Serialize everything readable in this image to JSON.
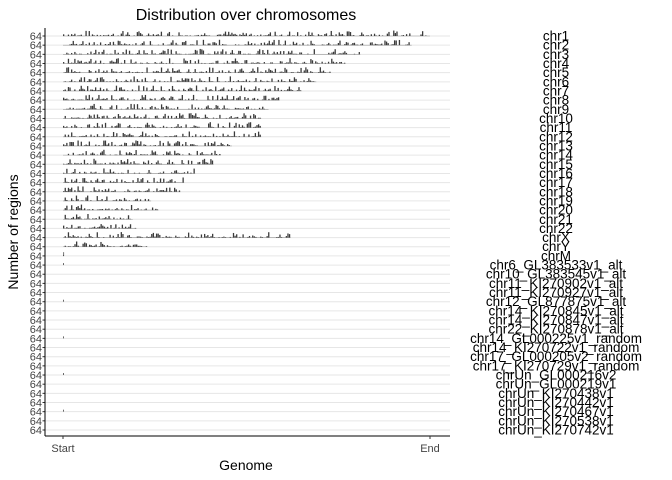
{
  "chart_data": {
    "type": "bar",
    "title": "Distribution over chromosomes",
    "xlabel": "Genome",
    "ylabel": "Number of regions",
    "x_ticks": [
      "Start",
      "End"
    ],
    "y_tick_label": "64",
    "grid": "horizontal lines per chromosome",
    "legend": "none",
    "chromosomes": [
      {
        "name": "chr1",
        "length": 1.0
      },
      {
        "name": "chr2",
        "length": 0.95
      },
      {
        "name": "chr3",
        "length": 0.81
      },
      {
        "name": "chr4",
        "length": 0.77
      },
      {
        "name": "chr5",
        "length": 0.73
      },
      {
        "name": "chr6",
        "length": 0.69
      },
      {
        "name": "chr7",
        "length": 0.65
      },
      {
        "name": "chr8",
        "length": 0.59
      },
      {
        "name": "chr9",
        "length": 0.56
      },
      {
        "name": "chr10",
        "length": 0.54
      },
      {
        "name": "chr11",
        "length": 0.54
      },
      {
        "name": "chr12",
        "length": 0.54
      },
      {
        "name": "chr13",
        "length": 0.46
      },
      {
        "name": "chr14",
        "length": 0.43
      },
      {
        "name": "chr15",
        "length": 0.41
      },
      {
        "name": "chr16",
        "length": 0.36
      },
      {
        "name": "chr17",
        "length": 0.33
      },
      {
        "name": "chr18",
        "length": 0.32
      },
      {
        "name": "chr19",
        "length": 0.24
      },
      {
        "name": "chr20",
        "length": 0.26
      },
      {
        "name": "chr21",
        "length": 0.19
      },
      {
        "name": "chr22",
        "length": 0.2
      },
      {
        "name": "chrX",
        "length": 0.62
      },
      {
        "name": "chrY",
        "length": 0.23
      },
      {
        "name": "chrM",
        "length": 0.002
      },
      {
        "name": "chr6_GL383533v1_alt",
        "length": 0.0
      },
      {
        "name": "chr10_GL383545v1_alt",
        "length": 0.0
      },
      {
        "name": "chr11_KI270902v1_alt",
        "length": 0.0
      },
      {
        "name": "chr11_KI270927v1_alt",
        "length": 0.0
      },
      {
        "name": "chr12_GL877875v1_alt",
        "length": 0.0
      },
      {
        "name": "chr14_KI270845v1_alt",
        "length": 0.0
      },
      {
        "name": "chr14_KI270847v1_alt",
        "length": 0.0
      },
      {
        "name": "chr22_KI270878v1_alt",
        "length": 0.0
      },
      {
        "name": "chr14_GL000225v1_random",
        "length": 0.0
      },
      {
        "name": "chr14_KI270722v1_random",
        "length": 0.0
      },
      {
        "name": "chr17_GL000205v2_random",
        "length": 0.0
      },
      {
        "name": "chr17_KI270729v1_random",
        "length": 0.0
      },
      {
        "name": "chrUn_GL000216v2",
        "length": 0.0
      },
      {
        "name": "chrUn_GL000219v1",
        "length": 0.0
      },
      {
        "name": "chrUn_KI270438v1",
        "length": 0.0
      },
      {
        "name": "chrUn_KI270442v1",
        "length": 0.0
      },
      {
        "name": "chrUn_KI270467v1",
        "length": 0.0
      },
      {
        "name": "chrUn_KI270538v1",
        "length": 0.0
      },
      {
        "name": "chrUn_KI270742v1",
        "length": 0.0
      }
    ]
  }
}
